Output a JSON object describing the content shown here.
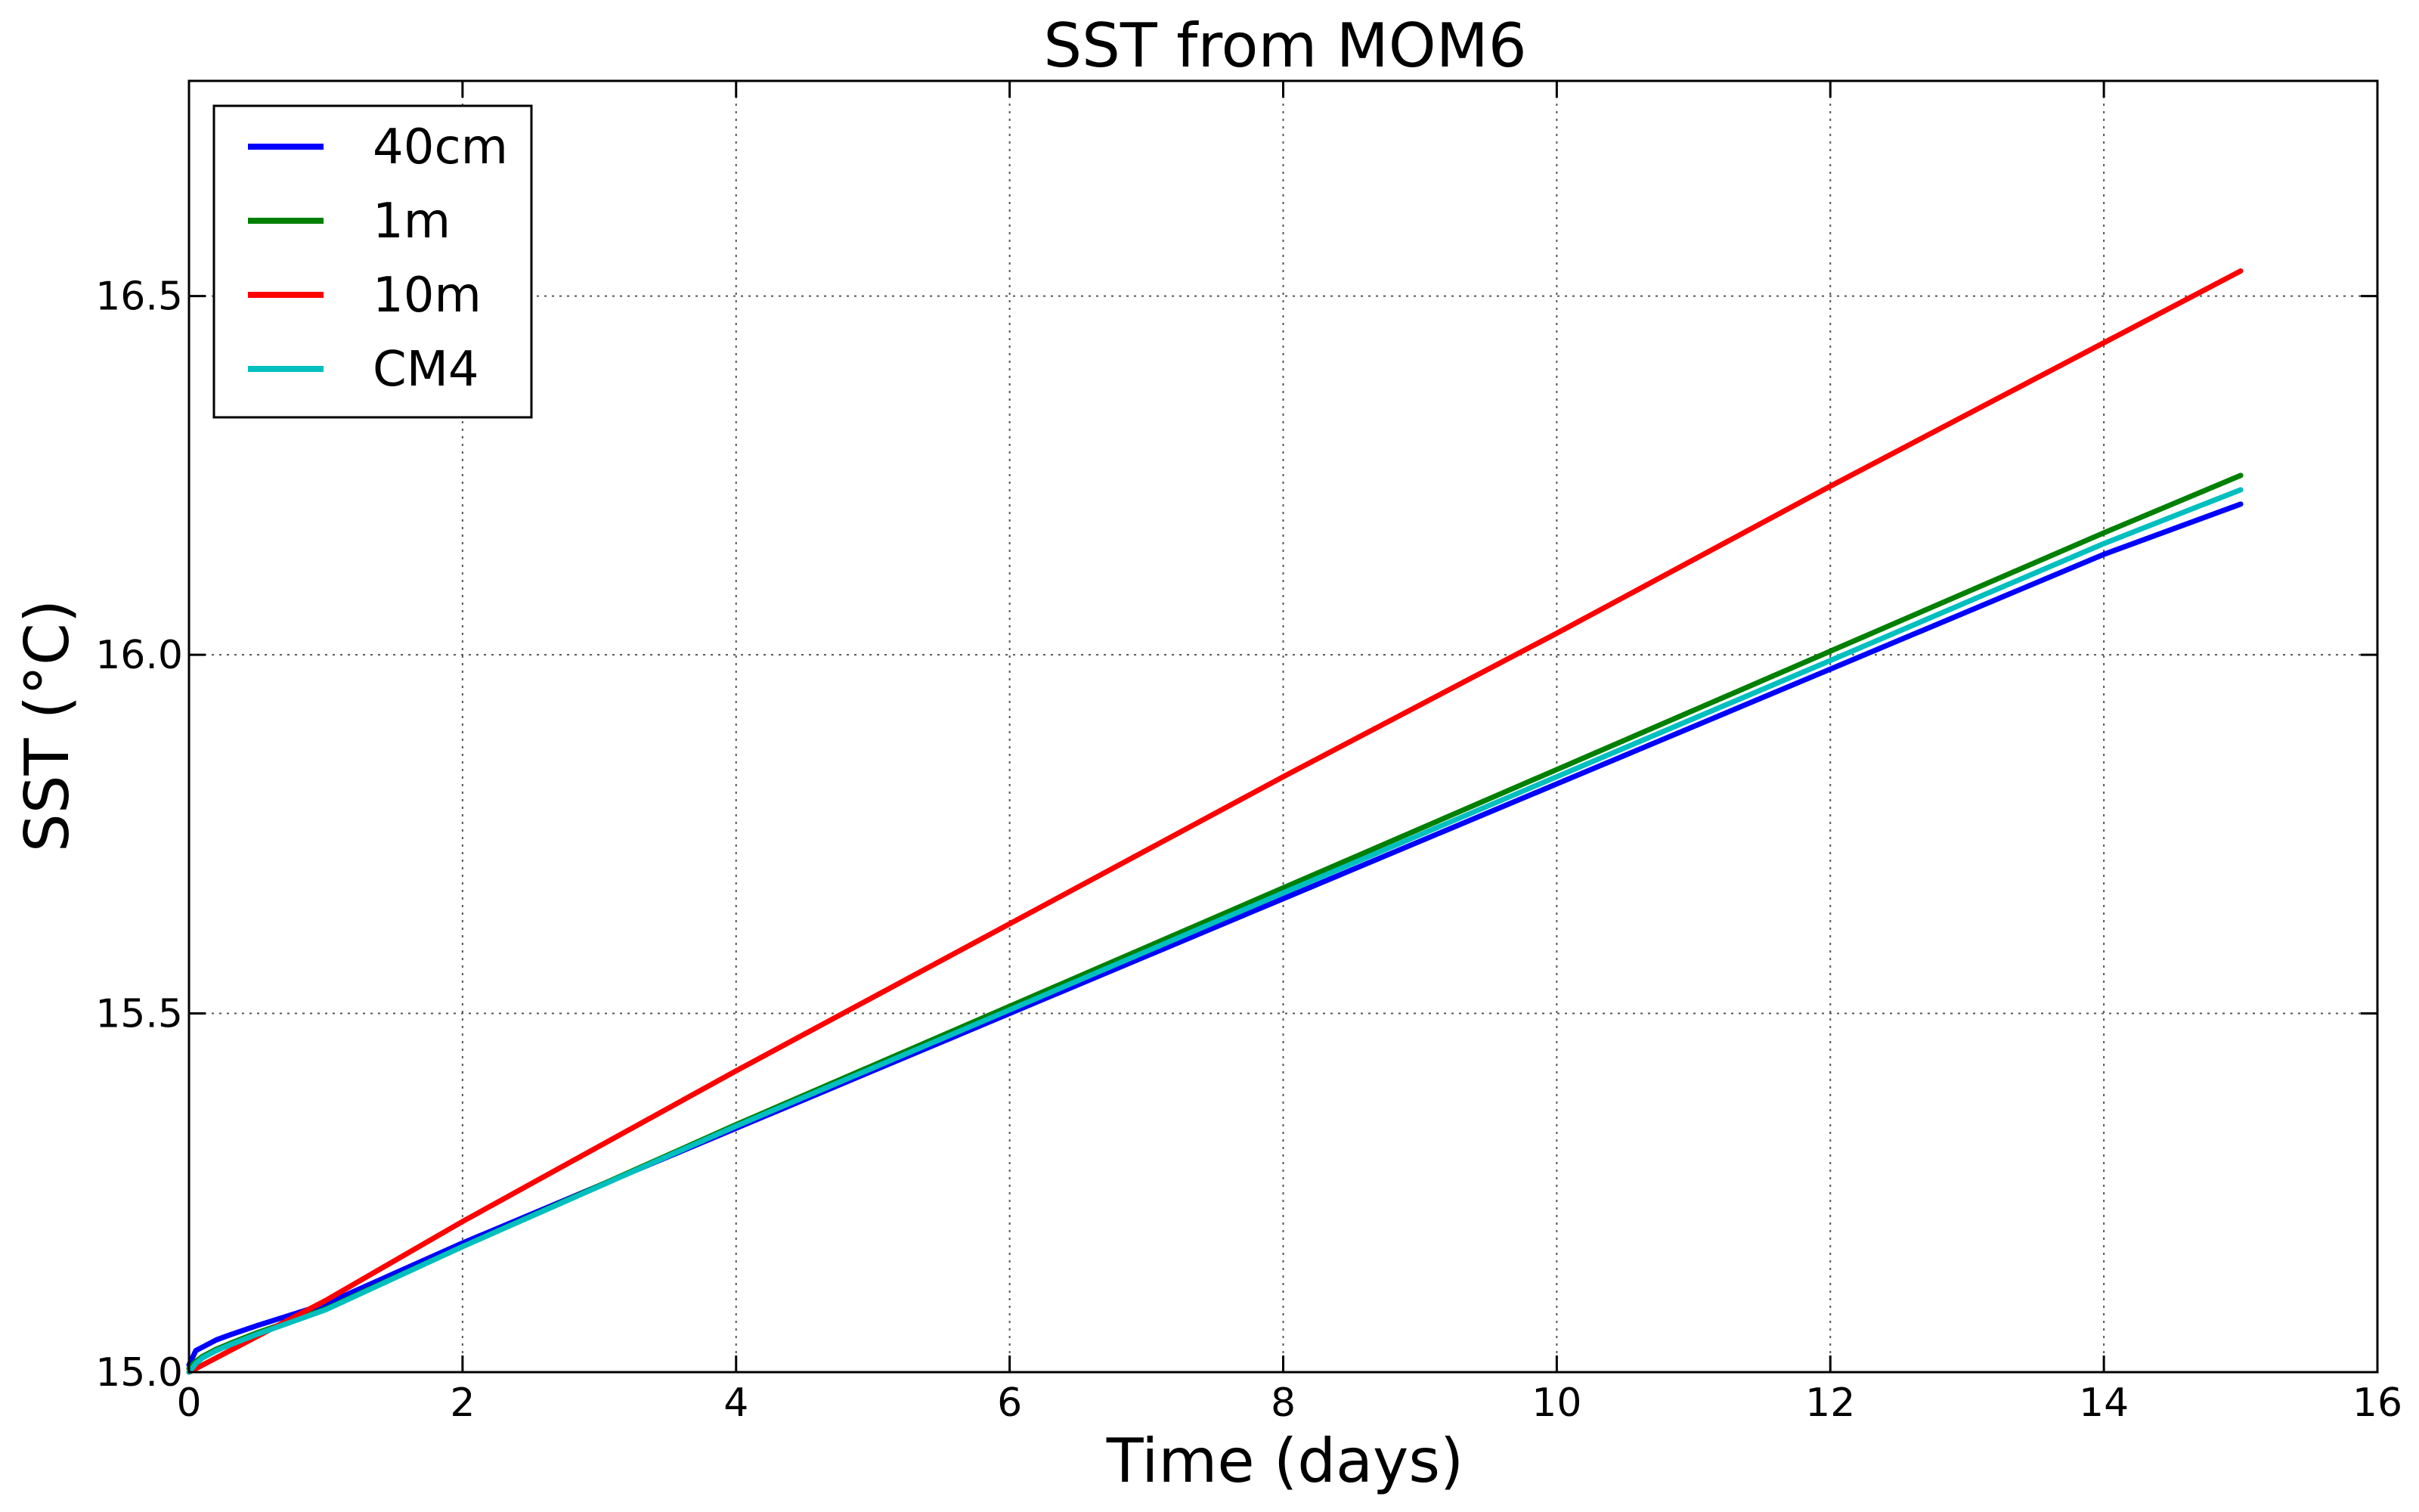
{
  "chart_data": {
    "type": "line",
    "title": "SST from MOM6",
    "xlabel": "Time (days)",
    "ylabel": "SST (°C)",
    "xlim": [
      0,
      16
    ],
    "ylim": [
      15.0,
      16.8
    ],
    "xticks": [
      0,
      2,
      4,
      6,
      8,
      10,
      12,
      14,
      16
    ],
    "xtick_labels": [
      "0",
      "2",
      "4",
      "6",
      "8",
      "10",
      "12",
      "14",
      "16"
    ],
    "yticks": [
      15.0,
      15.5,
      16.0,
      16.5
    ],
    "ytick_labels": [
      "15.0",
      "15.5",
      "16.0",
      "16.5"
    ],
    "grid": true,
    "legend_position": "top-left",
    "series": [
      {
        "name": "40cm",
        "color": "#0000ff",
        "x": [
          0,
          0.05,
          0.1,
          0.2,
          0.3,
          0.5,
          1,
          2,
          4,
          6,
          8,
          10,
          12,
          14,
          15
        ],
        "y": [
          15.01,
          15.03,
          15.035,
          15.045,
          15.052,
          15.065,
          15.095,
          15.18,
          15.34,
          15.5,
          15.66,
          15.82,
          15.98,
          16.14,
          16.21
        ]
      },
      {
        "name": "1m",
        "color": "#008000",
        "x": [
          0,
          0.05,
          0.1,
          0.2,
          0.3,
          0.5,
          1,
          2,
          4,
          6,
          8,
          10,
          12,
          14,
          15
        ],
        "y": [
          15.005,
          15.015,
          15.022,
          15.032,
          15.04,
          15.055,
          15.088,
          15.175,
          15.345,
          15.51,
          15.675,
          15.84,
          16.005,
          16.17,
          16.25
        ]
      },
      {
        "name": "10m",
        "color": "#ff0000",
        "x": [
          0,
          0.5,
          1,
          2,
          4,
          6,
          8,
          10,
          12,
          14,
          15
        ],
        "y": [
          15.0,
          15.05,
          15.1,
          15.21,
          15.42,
          15.625,
          15.83,
          16.03,
          16.235,
          16.435,
          16.535
        ]
      },
      {
        "name": "CM4",
        "color": "#00bfbf",
        "x": [
          0,
          0.05,
          0.1,
          0.2,
          0.3,
          0.5,
          1,
          2,
          4,
          6,
          8,
          10,
          12,
          14,
          15
        ],
        "y": [
          15.0,
          15.012,
          15.02,
          15.03,
          15.038,
          15.053,
          15.087,
          15.175,
          15.343,
          15.505,
          15.668,
          15.83,
          15.992,
          16.155,
          16.23
        ]
      }
    ]
  }
}
